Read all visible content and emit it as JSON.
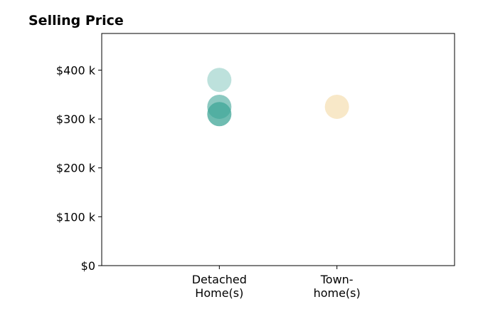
{
  "chart_data": {
    "type": "scatter",
    "title": "Selling Price",
    "xlabel": "",
    "ylabel": "",
    "categories": [
      [
        "Detached",
        "Home(s)"
      ],
      [
        "Town-",
        "home(s)"
      ]
    ],
    "y_ticks": [
      {
        "value": 0,
        "label": "$0"
      },
      {
        "value": 100000,
        "label": "$100 k"
      },
      {
        "value": 200000,
        "label": "$200 k"
      },
      {
        "value": 300000,
        "label": "$300 k"
      },
      {
        "value": 400000,
        "label": "$400 k"
      }
    ],
    "ylim": [
      0,
      475000
    ],
    "x_domain": [
      0,
      3
    ],
    "grid": false,
    "legend": "none",
    "points": [
      {
        "category": 0,
        "value": 380000,
        "color": "#5bb5a8",
        "opacity": 0.4
      },
      {
        "category": 0,
        "value": 325000,
        "color": "#3fa597",
        "opacity": 0.6
      },
      {
        "category": 0,
        "value": 310000,
        "color": "#3fa597",
        "opacity": 0.75
      },
      {
        "category": 1,
        "value": 325000,
        "color": "#f5deb0",
        "opacity": 0.7
      }
    ]
  }
}
